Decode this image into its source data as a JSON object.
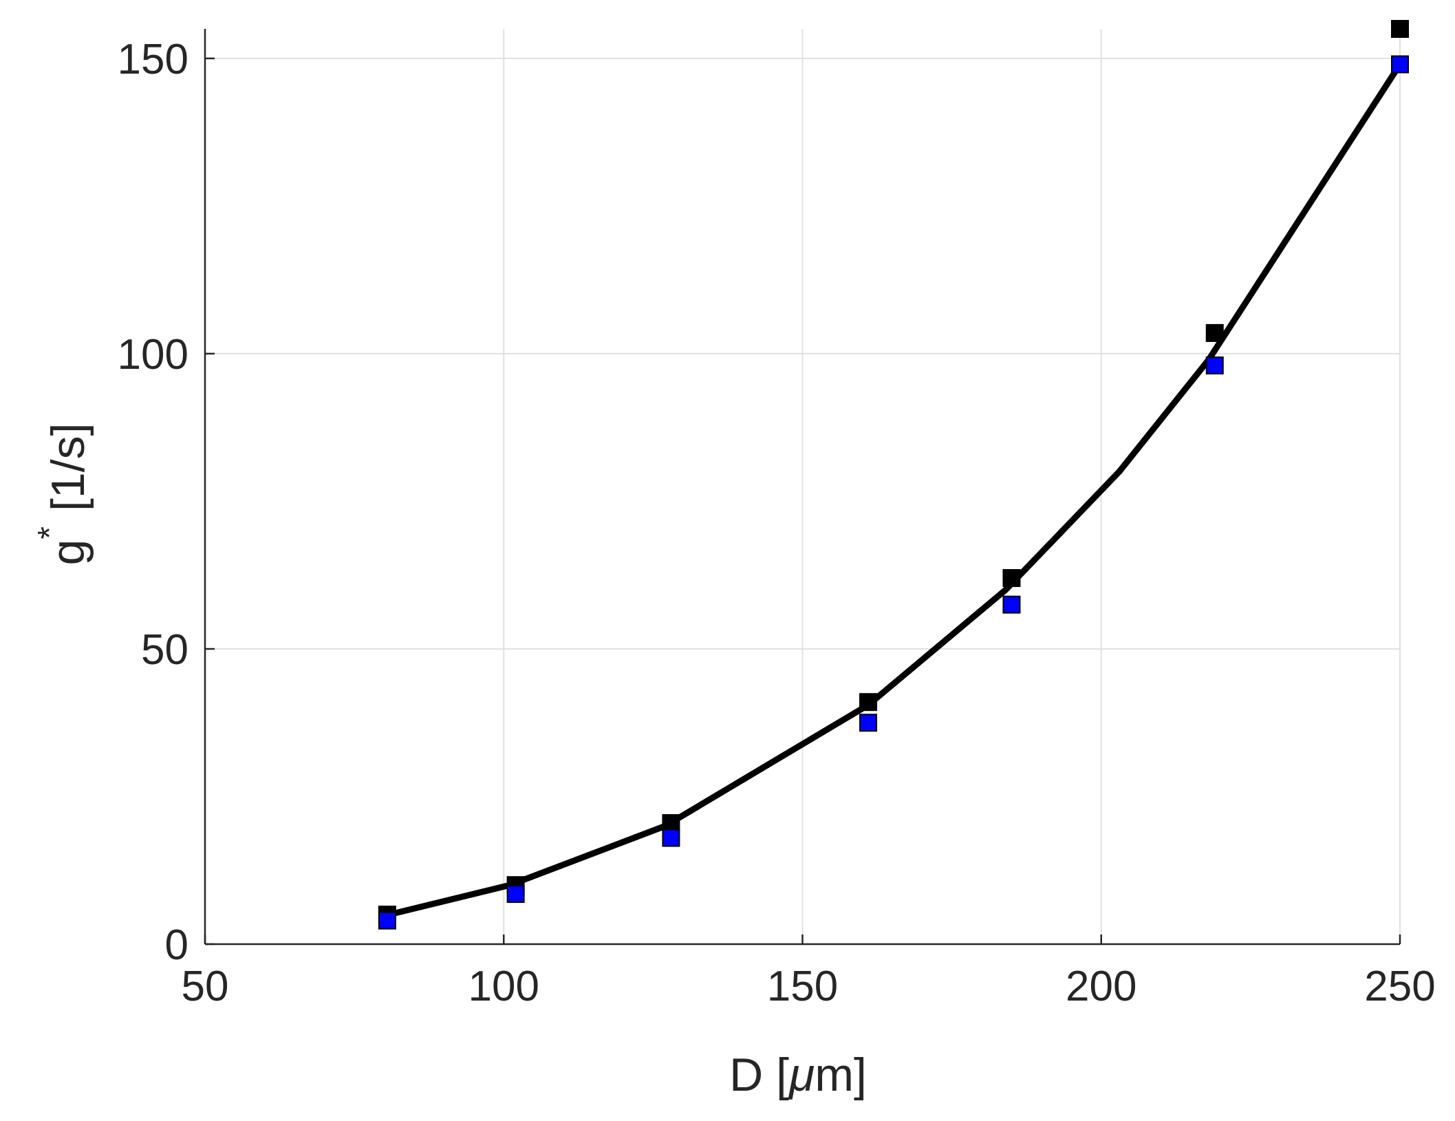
{
  "chart_data": {
    "type": "line",
    "xlabel": "D [μm]",
    "xlabel_main": "D [",
    "xlabel_mu": "μ",
    "xlabel_rest": "m]",
    "ylabel": "g* [1/s]",
    "ylabel_main": "g",
    "ylabel_sup": "*",
    "ylabel_rest": "[1/s]",
    "xlim": [
      50,
      250
    ],
    "ylim": [
      0,
      155
    ],
    "xticks": [
      50,
      100,
      150,
      200,
      250
    ],
    "yticks": [
      0,
      50,
      100,
      150
    ],
    "xtick_labels": [
      "50",
      "100",
      "150",
      "200",
      "250"
    ],
    "ytick_labels": [
      "0",
      "50",
      "100",
      "150"
    ],
    "grid": true,
    "colors": {
      "line": "#000000",
      "black_marker": "#000000",
      "blue_marker": "#0000ff",
      "grid": "#e0e0e0",
      "axis": "#262626"
    },
    "series": [
      {
        "style": "solid-line",
        "x": [
          80,
          101,
          127,
          161,
          184,
          203,
          218,
          250
        ],
        "y": [
          4.8,
          10,
          20,
          40.5,
          60,
          80,
          99,
          149
        ]
      },
      {
        "style": "black-square",
        "x": [
          80.5,
          102,
          128,
          161,
          185,
          219,
          250
        ],
        "y": [
          5,
          10,
          20.5,
          41,
          62,
          103.5,
          155
        ]
      },
      {
        "style": "blue-square",
        "x": [
          80.5,
          102,
          128,
          161,
          185,
          219,
          250
        ],
        "y": [
          4,
          8.5,
          18,
          37.5,
          57.5,
          98,
          149
        ]
      }
    ]
  }
}
